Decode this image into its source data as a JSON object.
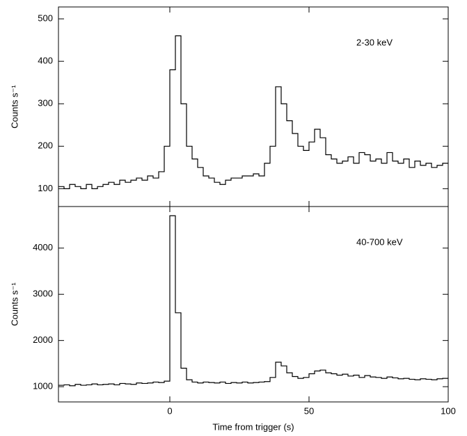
{
  "chart_data": [
    {
      "type": "line",
      "step": "post",
      "y_label": "Counts s⁻¹",
      "annotation": "2-30 keV",
      "color": "#000000",
      "xlim": [
        -40,
        100
      ],
      "xticks": [
        0,
        50,
        100
      ],
      "ylim": [
        58,
        528
      ],
      "yticks": [
        100,
        200,
        300,
        400,
        500
      ],
      "x": [
        -40,
        -38,
        -36,
        -34,
        -32,
        -30,
        -28,
        -26,
        -24,
        -22,
        -20,
        -18,
        -16,
        -14,
        -12,
        -10,
        -8,
        -6,
        -4,
        -2,
        0,
        2,
        4,
        6,
        8,
        10,
        12,
        14,
        16,
        18,
        20,
        22,
        24,
        26,
        28,
        30,
        32,
        34,
        36,
        38,
        40,
        42,
        44,
        46,
        48,
        50,
        52,
        54,
        56,
        58,
        60,
        62,
        64,
        66,
        68,
        70,
        72,
        74,
        76,
        78,
        80,
        82,
        84,
        86,
        88,
        90,
        92,
        94,
        96,
        98
      ],
      "values": [
        105,
        100,
        110,
        105,
        100,
        110,
        100,
        105,
        110,
        115,
        110,
        120,
        115,
        120,
        125,
        120,
        130,
        125,
        140,
        200,
        380,
        460,
        300,
        200,
        170,
        150,
        130,
        125,
        115,
        110,
        120,
        125,
        125,
        130,
        130,
        135,
        130,
        160,
        200,
        340,
        300,
        260,
        230,
        200,
        190,
        210,
        240,
        220,
        180,
        170,
        160,
        165,
        175,
        160,
        185,
        180,
        165,
        170,
        160,
        185,
        165,
        160,
        170,
        150,
        165,
        155,
        160,
        150,
        155,
        160
      ]
    },
    {
      "type": "line",
      "step": "post",
      "y_label": "Counts s⁻¹",
      "annotation": "40-700 keV",
      "x_label": "Time from trigger (s)",
      "color": "#000000",
      "xlim": [
        -40,
        100
      ],
      "xticks": [
        0,
        50,
        100
      ],
      "ylim": [
        670,
        4900
      ],
      "yticks": [
        1000,
        2000,
        3000,
        4000
      ],
      "x": [
        -40,
        -38,
        -36,
        -34,
        -32,
        -30,
        -28,
        -26,
        -24,
        -22,
        -20,
        -18,
        -16,
        -14,
        -12,
        -10,
        -8,
        -6,
        -4,
        -2,
        0,
        2,
        4,
        6,
        8,
        10,
        12,
        14,
        16,
        18,
        20,
        22,
        24,
        26,
        28,
        30,
        32,
        34,
        36,
        38,
        40,
        42,
        44,
        46,
        48,
        50,
        52,
        54,
        56,
        58,
        60,
        62,
        64,
        66,
        68,
        70,
        72,
        74,
        76,
        78,
        80,
        82,
        84,
        86,
        88,
        90,
        92,
        94,
        96,
        98
      ],
      "values": [
        1030,
        1040,
        1020,
        1050,
        1030,
        1040,
        1060,
        1040,
        1050,
        1060,
        1040,
        1070,
        1060,
        1050,
        1080,
        1070,
        1080,
        1100,
        1090,
        1120,
        4700,
        2600,
        1400,
        1150,
        1100,
        1080,
        1100,
        1090,
        1080,
        1100,
        1070,
        1090,
        1080,
        1100,
        1080,
        1090,
        1100,
        1110,
        1200,
        1530,
        1450,
        1300,
        1220,
        1180,
        1200,
        1280,
        1340,
        1360,
        1300,
        1280,
        1250,
        1270,
        1230,
        1250,
        1200,
        1240,
        1210,
        1200,
        1180,
        1210,
        1190,
        1170,
        1180,
        1160,
        1150,
        1170,
        1160,
        1150,
        1170,
        1180
      ]
    }
  ]
}
